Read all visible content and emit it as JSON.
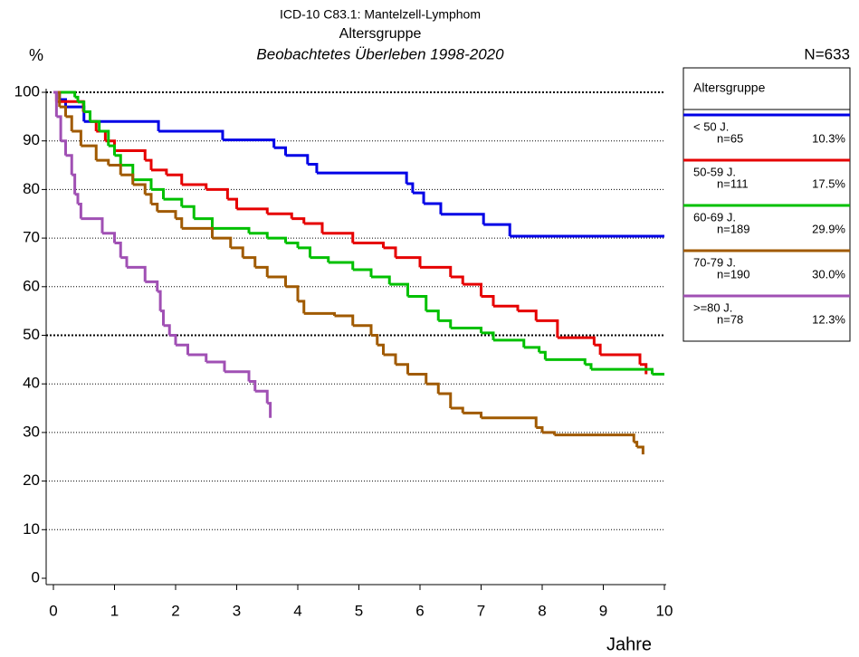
{
  "chart_data": {
    "type": "km_step",
    "title": "ICD-10 C83.1: Mantelzell-Lymphom",
    "subtitle": "Altersgruppe",
    "subtitle2": "Beobachtetes Überleben 1998-2020",
    "y_label": "%",
    "x_label": "Jahre",
    "note": "N=633",
    "legend_title": "Altersgruppe",
    "xlim": [
      0,
      10
    ],
    "ylim": [
      0,
      100
    ],
    "xticks": [
      0,
      1,
      2,
      3,
      4,
      5,
      6,
      7,
      8,
      9,
      10
    ],
    "yticks": [
      0,
      10,
      20,
      30,
      40,
      50,
      60,
      70,
      80,
      90,
      100
    ],
    "grid": true,
    "series": [
      {
        "name": "< 50 J.",
        "n": "n=65",
        "share": "10.3%",
        "color": "#0000e6",
        "x": [
          0,
          0.1,
          0.2,
          0.5,
          1.72,
          2.77,
          3.61,
          3.8,
          4.16,
          4.31,
          5.78,
          5.88,
          6.06,
          6.34,
          7.04,
          7.47,
          10
        ],
        "values": [
          100,
          98.5,
          97,
          94,
          92,
          90.2,
          88.6,
          87,
          85.2,
          83.4,
          81.2,
          79.3,
          77.1,
          74.9,
          72.8,
          70.4,
          70.4
        ]
      },
      {
        "name": "50-59 J.",
        "n": "n=111",
        "share": "17.5%",
        "color": "#e60000",
        "x": [
          0,
          0.05,
          0.49,
          0.6,
          0.7,
          0.85,
          1.0,
          1.5,
          1.6,
          1.85,
          2.1,
          2.5,
          2.85,
          3.0,
          3.5,
          3.9,
          4.1,
          4.4,
          4.9,
          5.4,
          5.6,
          6.0,
          6.5,
          6.7,
          7.0,
          7.2,
          7.6,
          7.9,
          8.25,
          8.85,
          8.95,
          9.6,
          9.7
        ],
        "values": [
          100,
          98.1,
          96,
          94,
          92,
          90,
          88,
          86,
          84,
          83,
          81,
          80,
          78,
          76,
          75,
          74,
          73,
          71,
          69,
          68,
          66,
          64,
          62,
          60.5,
          58,
          56,
          55,
          53,
          49.5,
          48,
          46,
          44,
          42
        ]
      },
      {
        "name": "60-69 J.",
        "n": "n=189",
        "share": "29.9%",
        "color": "#00c000",
        "x": [
          0,
          0.35,
          0.4,
          0.5,
          0.6,
          0.75,
          0.9,
          1.0,
          1.1,
          1.3,
          1.6,
          1.8,
          2.1,
          2.3,
          2.6,
          3.2,
          3.5,
          3.8,
          4.0,
          4.2,
          4.5,
          4.9,
          5.2,
          5.5,
          5.8,
          6.1,
          6.3,
          6.5,
          7.0,
          7.2,
          7.7,
          7.95,
          8.05,
          8.7,
          8.8,
          9.8,
          10
        ],
        "values": [
          100,
          99,
          98,
          96,
          94,
          92,
          89,
          87,
          85,
          82,
          80,
          78,
          76.5,
          74,
          72,
          71,
          70,
          69,
          68,
          66,
          65,
          63.5,
          62,
          60.5,
          58,
          55,
          53,
          51.5,
          50.5,
          49,
          47.5,
          46.5,
          45,
          44,
          43,
          42,
          42
        ]
      },
      {
        "name": "70-79 J.",
        "n": "n=190",
        "share": "30.0%",
        "color": "#a05a00",
        "x": [
          0,
          0.1,
          0.2,
          0.3,
          0.45,
          0.7,
          0.9,
          1.1,
          1.3,
          1.5,
          1.6,
          1.7,
          2.0,
          2.1,
          2.6,
          2.9,
          3.1,
          3.3,
          3.5,
          3.8,
          4.0,
          4.1,
          4.6,
          4.9,
          5.2,
          5.3,
          5.4,
          5.6,
          5.8,
          6.1,
          6.3,
          6.5,
          6.7,
          7.0,
          7.9,
          8.0,
          8.2,
          9.5,
          9.55,
          9.65
        ],
        "values": [
          100,
          97,
          95,
          92,
          89,
          86,
          85,
          83,
          81,
          79,
          77,
          75.5,
          74,
          72,
          70,
          68,
          66,
          64,
          62,
          60,
          57,
          54.5,
          54,
          52,
          50,
          48,
          46,
          44,
          42,
          40,
          38,
          35,
          34,
          33,
          31,
          30,
          29.5,
          28,
          27,
          25.5
        ]
      },
      {
        "name": ">=80 J.",
        "n": "n=78",
        "share": "12.3%",
        "color": "#a050b4",
        "x": [
          0,
          0.05,
          0.12,
          0.2,
          0.3,
          0.35,
          0.4,
          0.45,
          0.8,
          1.0,
          1.1,
          1.2,
          1.5,
          1.7,
          1.75,
          1.8,
          1.9,
          2.0,
          2.2,
          2.5,
          2.8,
          3.2,
          3.3,
          3.5,
          3.55
        ],
        "values": [
          100,
          95,
          90,
          87,
          83,
          79,
          77,
          74,
          71,
          69,
          66,
          64,
          61,
          59,
          55,
          52,
          50,
          48,
          46,
          44.5,
          42.5,
          40.5,
          38.5,
          36,
          33
        ]
      }
    ]
  }
}
